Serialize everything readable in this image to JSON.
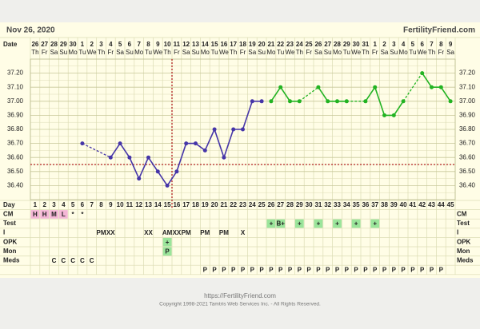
{
  "chart_data": {
    "type": "line",
    "start_date": "Nov 26, 2020",
    "site_name": "FertilityFriend.com",
    "date_label": "Date",
    "day_label": "Day",
    "dates": [
      "26",
      "27",
      "28",
      "29",
      "30",
      "1",
      "2",
      "3",
      "4",
      "5",
      "6",
      "7",
      "8",
      "9",
      "10",
      "11",
      "12",
      "13",
      "14",
      "15",
      "16",
      "17",
      "18",
      "19",
      "20",
      "21",
      "22",
      "23",
      "24",
      "25",
      "26",
      "27",
      "28",
      "29",
      "30",
      "31",
      "1",
      "2",
      "3",
      "4",
      "5",
      "6",
      "7",
      "8",
      "9"
    ],
    "weekdays": [
      "Th",
      "Fr",
      "Sa",
      "Su",
      "Mo",
      "Tu",
      "We",
      "Th",
      "Fr",
      "Sa",
      "Su",
      "Mo",
      "Tu",
      "We",
      "Th",
      "Fr",
      "Sa",
      "Su",
      "Mo",
      "Tu",
      "We",
      "Th",
      "Fr",
      "Sa",
      "Su",
      "Mo",
      "Tu",
      "We",
      "Th",
      "Fr",
      "Sa",
      "Su",
      "Mo",
      "Tu",
      "We",
      "Th",
      "Fr",
      "Sa",
      "Su",
      "Mo",
      "Tu",
      "We",
      "Th",
      "Fr",
      "Sa"
    ],
    "categories": [
      1,
      2,
      3,
      4,
      5,
      6,
      7,
      8,
      9,
      10,
      11,
      12,
      13,
      14,
      15,
      16,
      17,
      18,
      19,
      20,
      21,
      22,
      23,
      24,
      25,
      26,
      27,
      28,
      29,
      30,
      31,
      32,
      33,
      34,
      35,
      36,
      37,
      38,
      39,
      40,
      41,
      42,
      43,
      44,
      45
    ],
    "series": [
      {
        "color": "#4535a8",
        "values": [
          null,
          null,
          null,
          null,
          null,
          36.7,
          null,
          null,
          36.6,
          36.7,
          36.6,
          36.45,
          36.6,
          36.5,
          36.4,
          36.5,
          36.7,
          36.7,
          36.65,
          36.8,
          36.6,
          36.8,
          36.8,
          37.0,
          37.0,
          null,
          null,
          null,
          null,
          null,
          null,
          null,
          null,
          null,
          null,
          null,
          null,
          null,
          null,
          null,
          null,
          null,
          null,
          null,
          null
        ]
      },
      {
        "color": "#22b322",
        "values": [
          null,
          null,
          null,
          null,
          null,
          null,
          null,
          null,
          null,
          null,
          null,
          null,
          null,
          null,
          null,
          null,
          null,
          null,
          null,
          null,
          null,
          null,
          null,
          null,
          null,
          37.0,
          37.1,
          37.0,
          37.0,
          null,
          37.1,
          37.0,
          37.0,
          37.0,
          null,
          37.0,
          37.1,
          36.9,
          36.9,
          37.0,
          null,
          37.2,
          37.1,
          37.1,
          37.0
        ]
      }
    ],
    "ylim": [
      36.3,
      37.3
    ],
    "yticks": [
      {
        "value": 36.4,
        "label": "36.40"
      },
      {
        "value": 36.5,
        "label": "36.50"
      },
      {
        "value": 36.6,
        "label": "36.60"
      },
      {
        "value": 36.7,
        "label": "36.70"
      },
      {
        "value": 36.8,
        "label": "36.80"
      },
      {
        "value": 36.9,
        "label": "36.90"
      },
      {
        "value": 37.0,
        "label": "37.00"
      },
      {
        "value": 37.1,
        "label": "37.10"
      },
      {
        "value": 37.2,
        "label": "37.20"
      }
    ],
    "grid": true,
    "coverline": 36.55,
    "ovulation_day": 15,
    "marker_color": "#b22222",
    "highlight_color": "#9be59b",
    "cm_highlight_color": "#f4b6d6",
    "rows": [
      {
        "label": "CM",
        "entries": [
          {
            "day": 1,
            "text": "H",
            "highlight": true
          },
          {
            "day": 2,
            "text": "H",
            "highlight": true
          },
          {
            "day": 3,
            "text": "M",
            "highlight": true
          },
          {
            "day": 4,
            "text": "L",
            "highlight": true
          },
          {
            "day": 5,
            "text": "*"
          },
          {
            "day": 6,
            "text": "*"
          }
        ]
      },
      {
        "label": "Test",
        "entries": [
          {
            "day": 26,
            "text": "+",
            "highlight": true
          },
          {
            "day": 27,
            "text": "B+",
            "highlight": true
          },
          {
            "day": 29,
            "text": "+",
            "highlight": true
          },
          {
            "day": 31,
            "text": "+",
            "highlight": true
          },
          {
            "day": 33,
            "text": "+",
            "highlight": true
          },
          {
            "day": 35,
            "text": "+",
            "highlight": true
          },
          {
            "day": 37,
            "text": "+",
            "highlight": true
          }
        ]
      },
      {
        "label": "I",
        "entries": [
          {
            "day": 8,
            "text": "PM"
          },
          {
            "day": 9,
            "text": "XX"
          },
          {
            "day": 13,
            "text": "XX"
          },
          {
            "day": 15,
            "text": "AM"
          },
          {
            "day": 16,
            "text": "XX"
          },
          {
            "day": 17,
            "text": "PM"
          },
          {
            "day": 19,
            "text": "PM"
          },
          {
            "day": 21,
            "text": "PM"
          },
          {
            "day": 23,
            "text": "X"
          }
        ]
      },
      {
        "label": "OPK",
        "entries": [
          {
            "day": 15,
            "text": "+",
            "highlight": true
          }
        ]
      },
      {
        "label": "Mon",
        "entries": [
          {
            "day": 15,
            "text": "P",
            "highlight": true
          }
        ]
      },
      {
        "label": "Meds",
        "entries": [
          {
            "day": 3,
            "text": "C"
          },
          {
            "day": 4,
            "text": "C"
          },
          {
            "day": 5,
            "text": "C"
          },
          {
            "day": 6,
            "text": "C"
          },
          {
            "day": 7,
            "text": "C"
          }
        ]
      },
      {
        "entries": [
          {
            "day": 19,
            "text": "P"
          },
          {
            "day": 20,
            "text": "P"
          },
          {
            "day": 21,
            "text": "P"
          },
          {
            "day": 22,
            "text": "P"
          },
          {
            "day": 23,
            "text": "P"
          },
          {
            "day": 24,
            "text": "P"
          },
          {
            "day": 25,
            "text": "P"
          },
          {
            "day": 26,
            "text": "P"
          },
          {
            "day": 27,
            "text": "P"
          },
          {
            "day": 28,
            "text": "P"
          },
          {
            "day": 29,
            "text": "P"
          },
          {
            "day": 30,
            "text": "P"
          },
          {
            "day": 31,
            "text": "P"
          },
          {
            "day": 32,
            "text": "P"
          },
          {
            "day": 33,
            "text": "P"
          },
          {
            "day": 34,
            "text": "P"
          },
          {
            "day": 35,
            "text": "P"
          },
          {
            "day": 36,
            "text": "P"
          },
          {
            "day": 37,
            "text": "P"
          },
          {
            "day": 38,
            "text": "P"
          },
          {
            "day": 39,
            "text": "P"
          },
          {
            "day": 40,
            "text": "P"
          },
          {
            "day": 41,
            "text": "P"
          },
          {
            "day": 42,
            "text": "P"
          },
          {
            "day": 43,
            "text": "P"
          },
          {
            "day": 44,
            "text": "P"
          }
        ]
      }
    ],
    "footer_url": "https://FertilityFriend.com",
    "copyright": "Copyright 1998-2021 Tamtris Web Services Inc. - All Rights Reserved."
  }
}
